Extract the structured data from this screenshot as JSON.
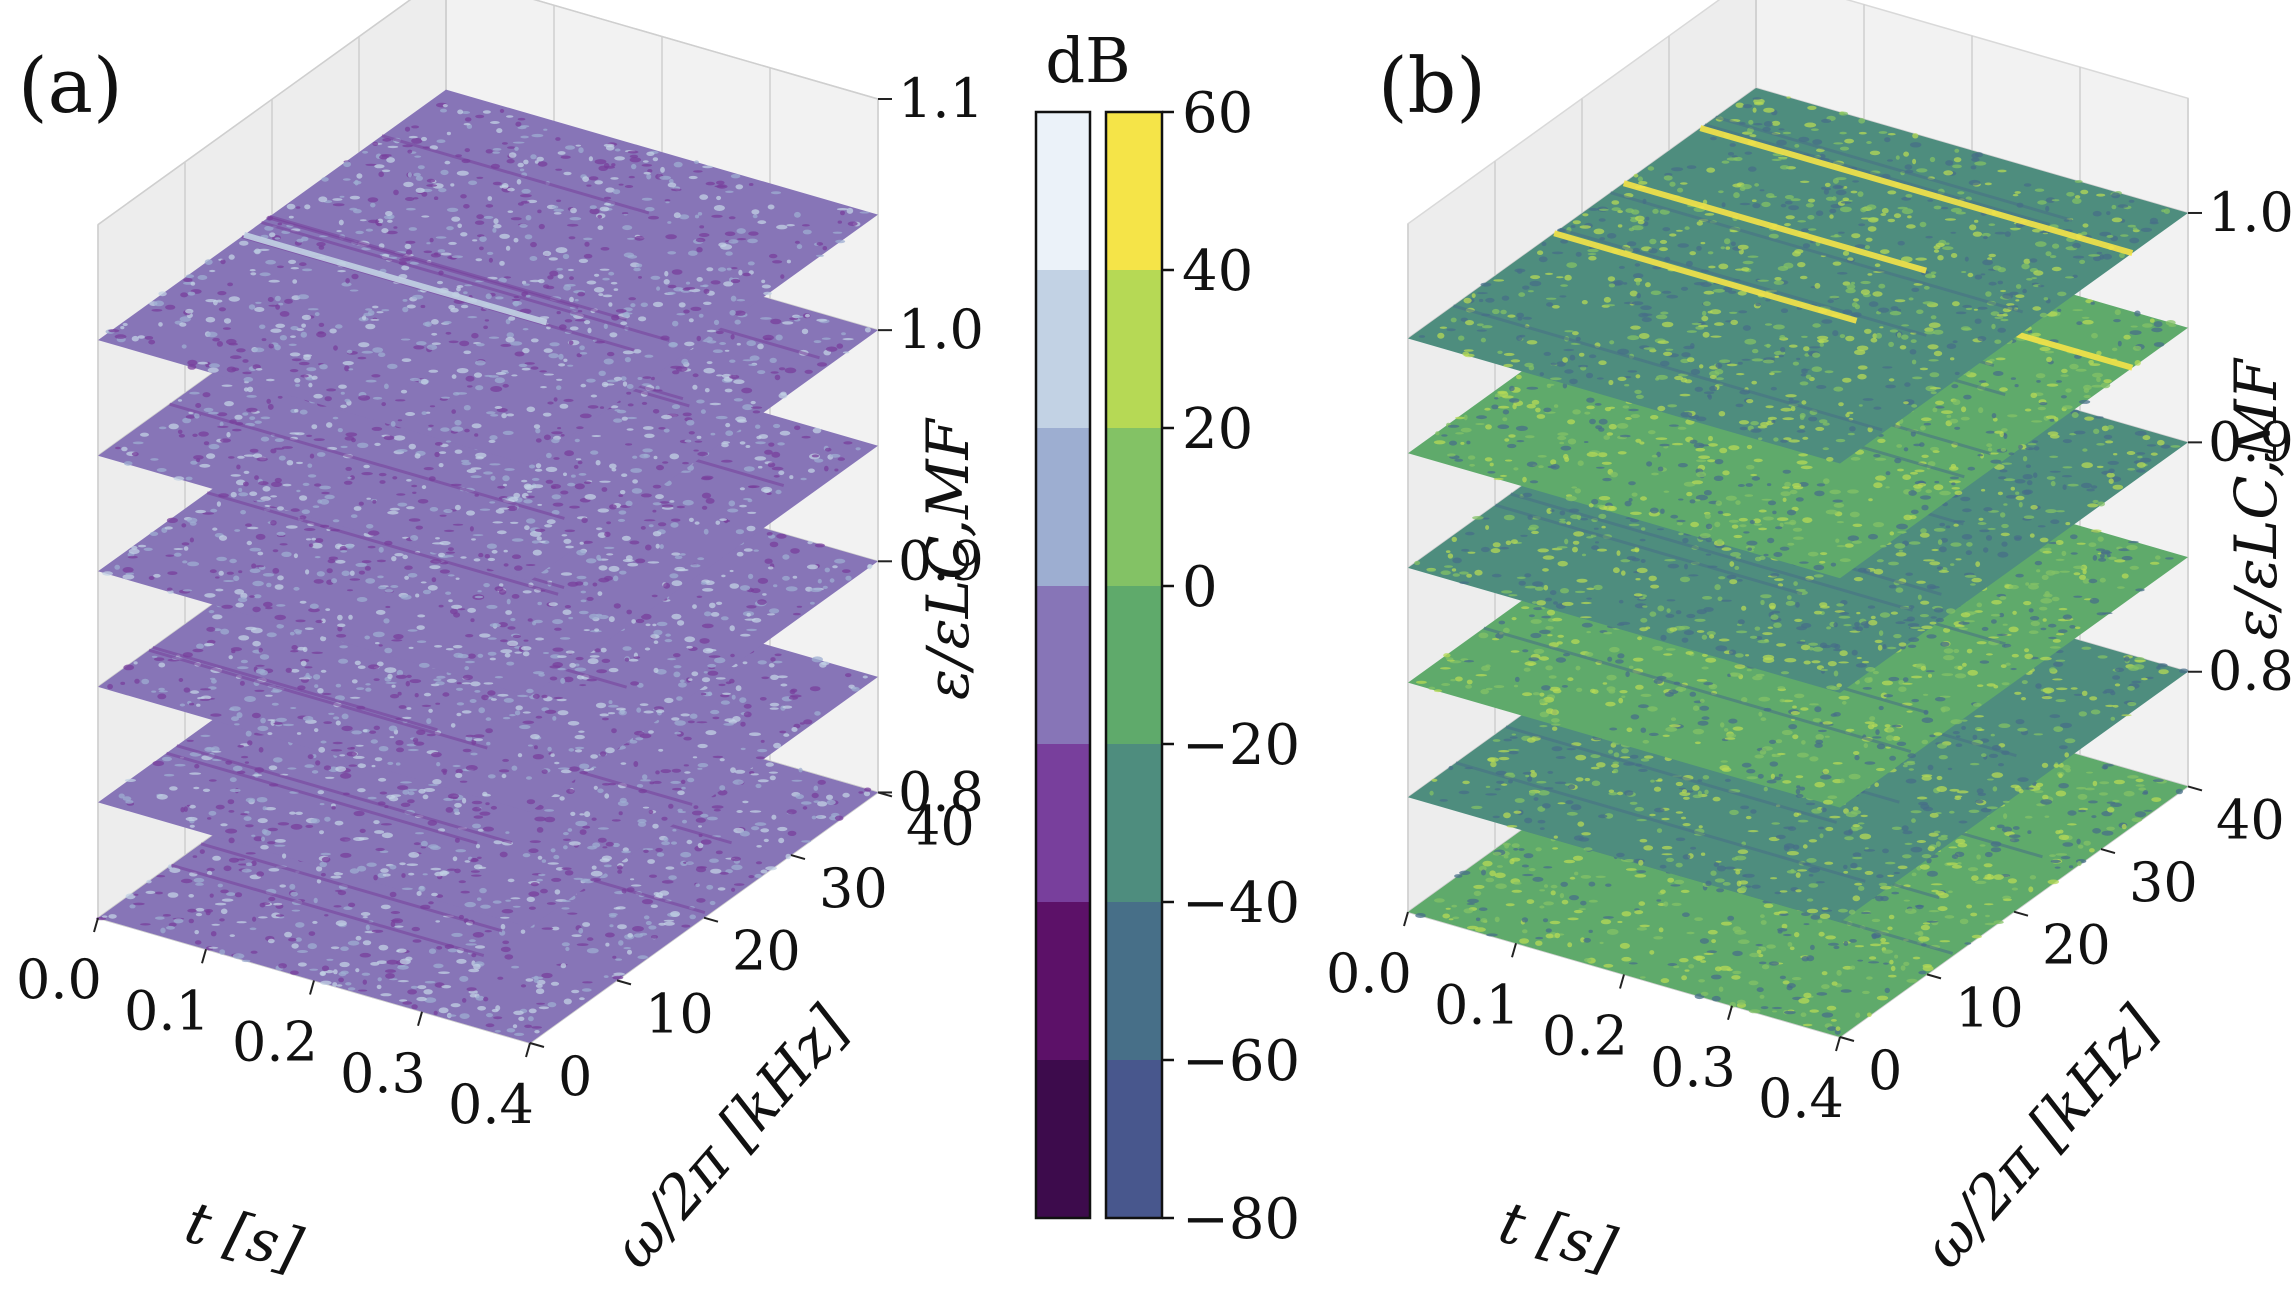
{
  "chart_data": [
    {
      "type": "surface3d",
      "panel_label": "(a)",
      "xlabel": "t [s]",
      "ylabel": "ω/2π [kHz]",
      "zlabel": "ε/εLC,MF",
      "xticks": [
        "0.0",
        "0.1",
        "0.2",
        "0.3",
        "0.4"
      ],
      "yticks": [
        "0",
        "10",
        "20",
        "30",
        "40"
      ],
      "zticks": [
        "0.8",
        "0.9",
        "1.0",
        "1.1"
      ],
      "xlim": [
        0.0,
        0.4
      ],
      "ylim": [
        0,
        40
      ],
      "zlim": [
        0.8,
        1.1
      ],
      "slice_levels": [
        0.8,
        0.85,
        0.9,
        0.95,
        1.0,
        1.05
      ],
      "colormap": "purple",
      "colormap_range_db": [
        -80,
        60
      ],
      "highlight_line_slice": 1.05
    },
    {
      "type": "surface3d",
      "panel_label": "(b)",
      "xlabel": "t [s]",
      "ylabel": "ω/2π [kHz]",
      "zlabel": "ε/εLC,MF",
      "xticks": [
        "0.0",
        "0.1",
        "0.2",
        "0.3",
        "0.4"
      ],
      "yticks": [
        "0",
        "10",
        "20",
        "30",
        "40"
      ],
      "zticks": [
        "0.8",
        "0.9",
        "1.0"
      ],
      "xlim": [
        0.0,
        0.4
      ],
      "ylim": [
        0,
        40
      ],
      "zlim": [
        0.75,
        1.05
      ],
      "slice_levels": [
        0.75,
        0.8,
        0.85,
        0.9,
        0.95,
        1.0
      ],
      "colormap": "viridis",
      "colormap_range_db": [
        -80,
        60
      ],
      "highlight_line_slices": [
        0.95,
        1.0
      ]
    }
  ],
  "colorbar": {
    "title": "dB",
    "ticks": [
      "60",
      "40",
      "20",
      "0",
      "−20",
      "−40",
      "−60",
      "−80"
    ],
    "range": [
      -80,
      60
    ],
    "purple_colors": [
      "#ebf2f9",
      "#c2d2e4",
      "#9daed1",
      "#8775b7",
      "#783f9c",
      "#5c1168",
      "#3d0b4c"
    ],
    "viridis_colors": [
      "#f5e448",
      "#b6d955",
      "#83c265",
      "#5faa6b",
      "#4e8d7e",
      "#476f88",
      "#48578d"
    ]
  }
}
